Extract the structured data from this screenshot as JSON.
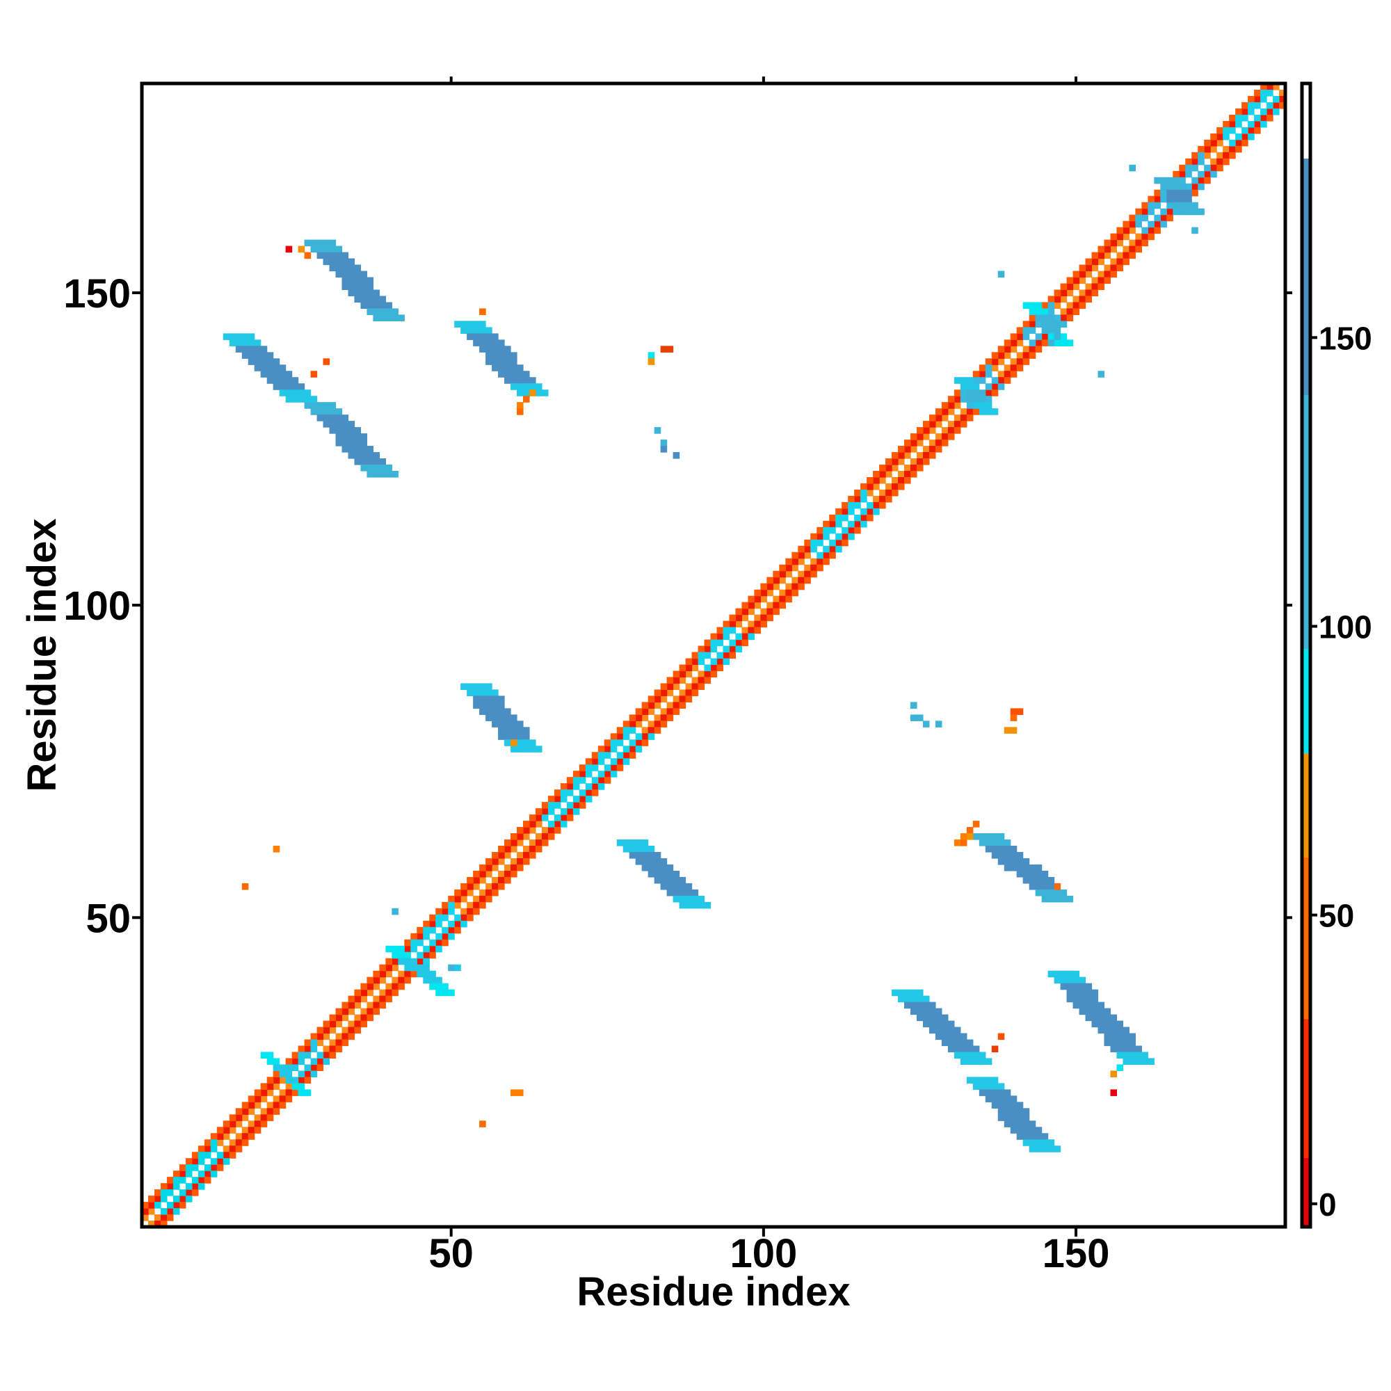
{
  "chart_data": {
    "type": "heatmap",
    "title": "",
    "xlabel": "Residue index",
    "ylabel": "Residue index",
    "n_residues": 183,
    "xlim": [
      1,
      183
    ],
    "ylim": [
      1,
      183
    ],
    "x_ticks": [
      50,
      100,
      150
    ],
    "y_ticks": [
      50,
      100,
      150
    ],
    "colorbar": {
      "range": [
        -4,
        194
      ],
      "ticks": [
        0,
        50,
        100,
        150
      ],
      "bands": [
        {
          "from": -4,
          "to": 8,
          "color": "#e8000b"
        },
        {
          "from": 8,
          "to": 32,
          "color": "#ff2a00"
        },
        {
          "from": 32,
          "to": 60,
          "color": "#ff6a00"
        },
        {
          "from": 60,
          "to": 78,
          "color": "#f39200"
        },
        {
          "from": 78,
          "to": 96,
          "color": "#00e6f0"
        },
        {
          "from": 96,
          "to": 140,
          "color": "#3cb4d8"
        },
        {
          "from": 140,
          "to": 181,
          "color": "#4a8fc4"
        },
        {
          "from": 181,
          "to": 194,
          "color": "#ffffff"
        }
      ]
    },
    "diagonal": {
      "offsets": [
        {
          "d": 1,
          "color": "#ff8c1a"
        },
        {
          "d": 2,
          "color": "#ee1a00"
        },
        {
          "d": 3,
          "color": "#ff5a00"
        }
      ],
      "colored_segments": [
        {
          "from": 3,
          "to": 12,
          "color": "#00d8ea"
        },
        {
          "from": 24,
          "to": 28,
          "color": "#22c8e6"
        },
        {
          "from": 42,
          "to": 50,
          "color": "#16d4ec"
        },
        {
          "from": 65,
          "to": 79,
          "color": "#16d4ec"
        },
        {
          "from": 90,
          "to": 95,
          "color": "#16d4ec"
        },
        {
          "from": 108,
          "to": 116,
          "color": "#16d4ec"
        },
        {
          "from": 132,
          "to": 136,
          "color": "#3ab8e0"
        },
        {
          "from": 142,
          "to": 146,
          "color": "#3ab8e0"
        },
        {
          "from": 160,
          "to": 170,
          "color": "#3ab8e0"
        },
        {
          "from": 174,
          "to": 181,
          "color": "#16d4ec"
        }
      ]
    },
    "strands": [
      {
        "x0": 27,
        "y0": 158,
        "x1": 38,
        "y1": 146,
        "w": 5,
        "color": "#4a8fc4",
        "edge": "#3cb4d8"
      },
      {
        "x0": 14,
        "y0": 143,
        "x1": 24,
        "y1": 133,
        "w": 5,
        "color": "#4a8fc4",
        "edge": "#22c8e6"
      },
      {
        "x0": 27,
        "y0": 132,
        "x1": 37,
        "y1": 121,
        "w": 5,
        "color": "#4a8fc4",
        "edge": "#3cb4d8"
      },
      {
        "x0": 51,
        "y0": 145,
        "x1": 61,
        "y1": 134,
        "w": 5,
        "color": "#4a8fc4",
        "edge": "#22c8e6"
      },
      {
        "x0": 52,
        "y0": 87,
        "x1": 60,
        "y1": 77,
        "w": 5,
        "color": "#4a8fc4",
        "edge": "#22c8e6"
      },
      {
        "x0": 77,
        "y0": 62,
        "x1": 87,
        "y1": 52,
        "w": 5,
        "color": "#4a8fc4",
        "edge": "#22c8e6"
      },
      {
        "x0": 134,
        "y0": 63,
        "x1": 145,
        "y1": 53,
        "w": 5,
        "color": "#4a8fc4",
        "edge": "#3cb4d8"
      },
      {
        "x0": 121,
        "y0": 38,
        "x1": 132,
        "y1": 27,
        "w": 5,
        "color": "#4a8fc4",
        "edge": "#22c8e6"
      },
      {
        "x0": 146,
        "y0": 41,
        "x1": 158,
        "y1": 27,
        "w": 5,
        "color": "#4a8fc4",
        "edge": "#22c8e6"
      },
      {
        "x0": 133,
        "y0": 24,
        "x1": 143,
        "y1": 13,
        "w": 5,
        "color": "#4a8fc4",
        "edge": "#22c8e6"
      },
      {
        "x0": 163,
        "y0": 168,
        "x1": 167,
        "y1": 163,
        "w": 4,
        "color": "#4a8fc4",
        "edge": "#3cb4d8"
      },
      {
        "x0": 142,
        "y0": 148,
        "x1": 147,
        "y1": 142,
        "w": 3,
        "color": "#3cb4d8",
        "edge": "#00e6f0"
      },
      {
        "x0": 131,
        "y0": 136,
        "x1": 135,
        "y1": 131,
        "w": 3,
        "color": "#3cb4d8",
        "edge": "#22c8e6"
      },
      {
        "x0": 40,
        "y0": 45,
        "x1": 48,
        "y1": 38,
        "w": 3,
        "color": "#22c8e6",
        "edge": "#00e6f0"
      },
      {
        "x0": 20,
        "y0": 28,
        "x1": 26,
        "y1": 22,
        "w": 2,
        "color": "#22c8e6",
        "edge": "#00e6f0"
      }
    ],
    "points": [
      {
        "x": 24,
        "y": 157,
        "color": "#e8000b"
      },
      {
        "x": 26,
        "y": 157,
        "color": "#f39200"
      },
      {
        "x": 27,
        "y": 156,
        "color": "#ff6a00"
      },
      {
        "x": 28,
        "y": 137,
        "color": "#ff5000"
      },
      {
        "x": 30,
        "y": 139,
        "color": "#ff5000"
      },
      {
        "x": 55,
        "y": 147,
        "color": "#ff6a00"
      },
      {
        "x": 61,
        "y": 132,
        "color": "#ff8000"
      },
      {
        "x": 62,
        "y": 133,
        "color": "#ff6a00"
      },
      {
        "x": 63,
        "y": 134,
        "color": "#f39200"
      },
      {
        "x": 61,
        "y": 131,
        "color": "#ff6a00"
      },
      {
        "x": 82,
        "y": 140,
        "color": "#00e6f0"
      },
      {
        "x": 82,
        "y": 139,
        "color": "#f39200"
      },
      {
        "x": 84,
        "y": 141,
        "color": "#e84000"
      },
      {
        "x": 85,
        "y": 141,
        "color": "#e84000"
      },
      {
        "x": 83,
        "y": 128,
        "color": "#3cb4d8"
      },
      {
        "x": 84,
        "y": 126,
        "color": "#3cb4d8"
      },
      {
        "x": 84,
        "y": 125,
        "color": "#4a8fc4"
      },
      {
        "x": 86,
        "y": 124,
        "color": "#4a8fc4"
      },
      {
        "x": 60,
        "y": 78,
        "color": "#f39200"
      },
      {
        "x": 22,
        "y": 61,
        "color": "#ff8000"
      },
      {
        "x": 17,
        "y": 55,
        "color": "#ff6a00"
      },
      {
        "x": 41,
        "y": 51,
        "color": "#3cb4d8"
      },
      {
        "x": 50,
        "y": 42,
        "color": "#3cb4d8"
      },
      {
        "x": 51,
        "y": 42,
        "color": "#22c8e6"
      },
      {
        "x": 60,
        "y": 22,
        "color": "#ff8000"
      },
      {
        "x": 61,
        "y": 22,
        "color": "#ff8000"
      },
      {
        "x": 55,
        "y": 17,
        "color": "#ff6a00"
      },
      {
        "x": 124,
        "y": 84,
        "color": "#3cb4d8"
      },
      {
        "x": 124,
        "y": 82,
        "color": "#3cb4d8"
      },
      {
        "x": 125,
        "y": 82,
        "color": "#3cb4d8"
      },
      {
        "x": 126,
        "y": 81,
        "color": "#3cb4d8"
      },
      {
        "x": 128,
        "y": 81,
        "color": "#3cb4d8"
      },
      {
        "x": 140,
        "y": 83,
        "color": "#ff5000"
      },
      {
        "x": 141,
        "y": 83,
        "color": "#ff5000"
      },
      {
        "x": 140,
        "y": 82,
        "color": "#ff6a00"
      },
      {
        "x": 139,
        "y": 80,
        "color": "#f39200"
      },
      {
        "x": 140,
        "y": 80,
        "color": "#f39200"
      },
      {
        "x": 131,
        "y": 62,
        "color": "#ff8000"
      },
      {
        "x": 132,
        "y": 62,
        "color": "#ff6a00"
      },
      {
        "x": 132,
        "y": 63,
        "color": "#ff8000"
      },
      {
        "x": 133,
        "y": 64,
        "color": "#ff6a00"
      },
      {
        "x": 133,
        "y": 63,
        "color": "#f39200"
      },
      {
        "x": 134,
        "y": 65,
        "color": "#ff6a00"
      },
      {
        "x": 147,
        "y": 55,
        "color": "#ff6a00"
      },
      {
        "x": 138,
        "y": 31,
        "color": "#ff5000"
      },
      {
        "x": 137,
        "y": 29,
        "color": "#e84000"
      },
      {
        "x": 156,
        "y": 25,
        "color": "#f39200"
      },
      {
        "x": 157,
        "y": 26,
        "color": "#00e6f0"
      },
      {
        "x": 156,
        "y": 22,
        "color": "#e8000b"
      },
      {
        "x": 138,
        "y": 153,
        "color": "#3cb4d8"
      },
      {
        "x": 154,
        "y": 137,
        "color": "#3cb4d8"
      },
      {
        "x": 159,
        "y": 170,
        "color": "#3cb4d8"
      },
      {
        "x": 169,
        "y": 160,
        "color": "#3cb4d8"
      },
      {
        "x": 146,
        "y": 142,
        "color": "#3cb4d8"
      },
      {
        "x": 147,
        "y": 143,
        "color": "#3cb4d8"
      }
    ]
  }
}
